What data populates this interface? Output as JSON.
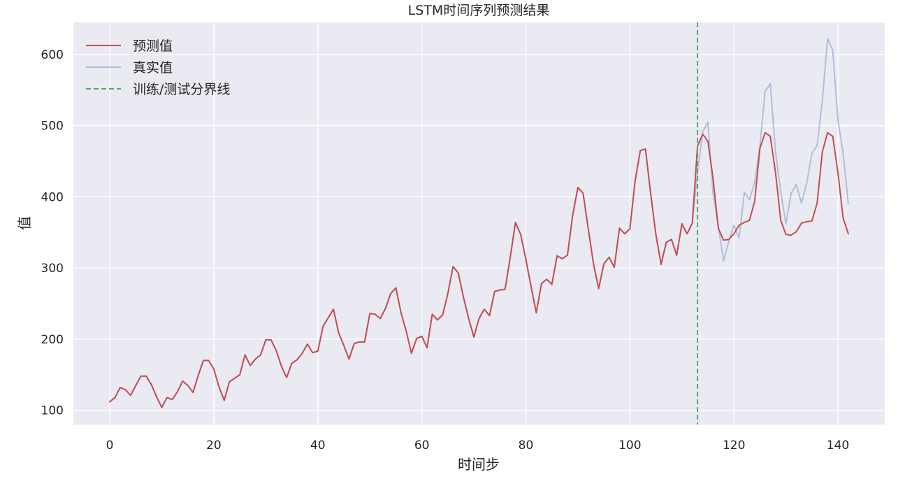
{
  "chart_data": {
    "type": "line",
    "title": "LSTM时间序列预测结果",
    "xlabel": "时间步",
    "ylabel": "值",
    "xlim": [
      -7,
      149
    ],
    "ylim": [
      80,
      645
    ],
    "xticks": [
      0,
      20,
      40,
      60,
      80,
      100,
      120,
      140
    ],
    "yticks": [
      100,
      200,
      300,
      400,
      500,
      600
    ],
    "grid": true,
    "legend_position": "top-left",
    "background_color": "#eaeaf2",
    "series": [
      {
        "name": "预测值",
        "color": "#c44e52",
        "style": "solid",
        "x_start": 0,
        "values": [
          112,
          118,
          132,
          129,
          121,
          135,
          148,
          148,
          136,
          119,
          104,
          118,
          115,
          126,
          141,
          135,
          125,
          149,
          170,
          170,
          158,
          133,
          114,
          140,
          145,
          150,
          178,
          163,
          172,
          178,
          199,
          199,
          184,
          162,
          146,
          166,
          171,
          180,
          193,
          181,
          183,
          218,
          230,
          242,
          209,
          191,
          172,
          194,
          196,
          196,
          236,
          235,
          229,
          243,
          264,
          272,
          237,
          211,
          180,
          201,
          204,
          188,
          235,
          227,
          234,
          264,
          302,
          293,
          259,
          229,
          203,
          229,
          242,
          233,
          267,
          269,
          270,
          315,
          364,
          347,
          312,
          274,
          237,
          278,
          284,
          277,
          317,
          313,
          318,
          374,
          413,
          405,
          355,
          306,
          271,
          306,
          315,
          301,
          356,
          348,
          355,
          422,
          465,
          467,
          404,
          347,
          305,
          336,
          340,
          318,
          362,
          348,
          363,
          471,
          488,
          478,
          425,
          356,
          339,
          340,
          348,
          360,
          364,
          367,
          394,
          468,
          490,
          485,
          434,
          367,
          347,
          346,
          351,
          363,
          365,
          366,
          391,
          463,
          490,
          485,
          434,
          370,
          348
        ]
      },
      {
        "name": "真实值",
        "color": "#b0bedc",
        "style": "solid",
        "x_start": 0,
        "values": [
          112,
          118,
          132,
          129,
          121,
          135,
          148,
          148,
          136,
          119,
          104,
          118,
          115,
          126,
          141,
          135,
          125,
          149,
          170,
          170,
          158,
          133,
          114,
          140,
          145,
          150,
          178,
          163,
          172,
          178,
          199,
          199,
          184,
          162,
          146,
          166,
          171,
          180,
          193,
          181,
          183,
          218,
          230,
          242,
          209,
          191,
          172,
          194,
          196,
          196,
          236,
          235,
          229,
          243,
          264,
          272,
          237,
          211,
          180,
          201,
          204,
          188,
          235,
          227,
          234,
          264,
          302,
          293,
          259,
          229,
          203,
          229,
          242,
          233,
          267,
          269,
          270,
          315,
          364,
          347,
          312,
          274,
          237,
          278,
          284,
          277,
          317,
          313,
          318,
          374,
          413,
          405,
          355,
          306,
          271,
          306,
          315,
          301,
          356,
          348,
          355,
          422,
          465,
          467,
          404,
          347,
          305,
          336,
          340,
          318,
          362,
          348,
          363,
          435,
          491,
          505,
          404,
          359,
          310,
          337,
          360,
          342,
          406,
          396,
          420,
          472,
          548,
          559,
          463,
          407,
          362,
          405,
          417,
          391,
          419,
          461,
          472,
          535,
          622,
          606,
          508,
          461,
          390
        ]
      }
    ],
    "vline": {
      "name": "训练/测试分界线",
      "x": 113,
      "color": "#55a868",
      "style": "dashed"
    }
  }
}
